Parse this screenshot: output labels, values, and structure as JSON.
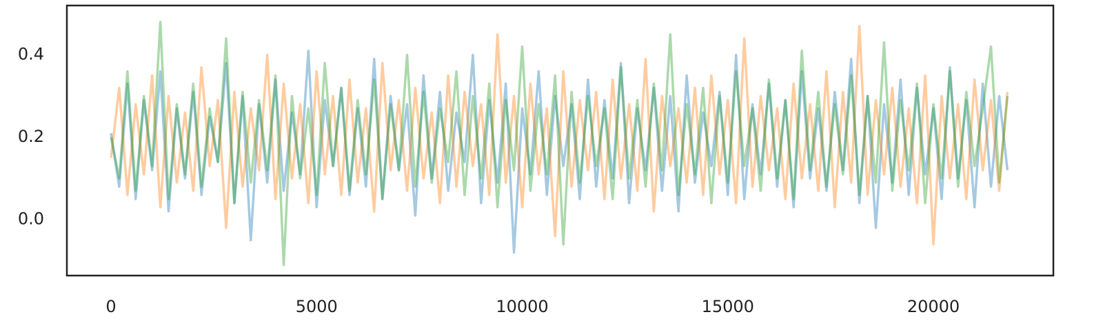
{
  "chart_data": {
    "type": "line",
    "x": [
      0,
      200,
      400,
      600,
      800,
      1000,
      1200,
      1400,
      1600,
      1800,
      2000,
      2200,
      2400,
      2600,
      2800,
      3000,
      3200,
      3400,
      3600,
      3800,
      4000,
      4200,
      4400,
      4600,
      4800,
      5000,
      5200,
      5400,
      5600,
      5800,
      6000,
      6200,
      6400,
      6600,
      6800,
      7000,
      7200,
      7400,
      7600,
      7800,
      8000,
      8200,
      8400,
      8600,
      8800,
      9000,
      9200,
      9400,
      9600,
      9800,
      10000,
      10200,
      10400,
      10600,
      10800,
      11000,
      11200,
      11400,
      11600,
      11800,
      12000,
      12200,
      12400,
      12600,
      12800,
      13000,
      13200,
      13400,
      13600,
      13800,
      14000,
      14200,
      14400,
      14600,
      14800,
      15000,
      15200,
      15400,
      15600,
      15800,
      16000,
      16200,
      16400,
      16600,
      16800,
      17000,
      17200,
      17400,
      17600,
      17800,
      18000,
      18200,
      18400,
      18600,
      18800,
      19000,
      19200,
      19400,
      19600,
      19800,
      20000,
      20200,
      20400,
      20600,
      20800,
      21000,
      21200,
      21400,
      21600,
      21800
    ],
    "series": [
      {
        "color": "#1f77b4",
        "values": [
          0.21,
          0.08,
          0.33,
          0.05,
          0.29,
          0.12,
          0.36,
          0.02,
          0.27,
          0.1,
          0.31,
          0.06,
          0.25,
          0.14,
          0.38,
          0.04,
          0.3,
          -0.05,
          0.28,
          0.09,
          0.34,
          0.07,
          0.26,
          0.11,
          0.41,
          0.03,
          0.29,
          0.13,
          0.32,
          0.06,
          0.27,
          0.08,
          0.39,
          0.05,
          0.3,
          0.12,
          0.28,
          0.01,
          0.35,
          0.1,
          0.31,
          0.07,
          0.26,
          0.14,
          0.4,
          0.04,
          0.29,
          0.09,
          0.33,
          -0.08,
          0.27,
          0.11,
          0.36,
          0.06,
          0.3,
          0.13,
          0.28,
          0.05,
          0.34,
          0.08,
          0.29,
          0.1,
          0.38,
          0.04,
          0.27,
          0.12,
          0.32,
          0.07,
          0.3,
          0.02,
          0.35,
          0.09,
          0.26,
          0.13,
          0.31,
          0.06,
          0.4,
          0.05,
          0.28,
          0.11,
          0.33,
          0.08,
          0.29,
          0.03,
          0.36,
          0.1,
          0.27,
          0.07,
          0.31,
          0.12,
          0.39,
          0.04,
          0.3,
          -0.02,
          0.28,
          0.09,
          0.34,
          0.06,
          0.32,
          0.11,
          0.27,
          0.05,
          0.37,
          0.1,
          0.29,
          0.03,
          0.33,
          0.08,
          0.3,
          0.12
        ]
      },
      {
        "color": "#ff7f0e",
        "values": [
          0.15,
          0.32,
          0.06,
          0.28,
          0.11,
          0.35,
          0.03,
          0.3,
          0.09,
          0.26,
          0.07,
          0.37,
          0.13,
          0.29,
          -0.02,
          0.31,
          0.08,
          0.27,
          0.12,
          0.4,
          0.05,
          0.33,
          0.1,
          0.28,
          0.04,
          0.36,
          0.11,
          0.3,
          0.06,
          0.34,
          0.09,
          0.27,
          0.02,
          0.38,
          0.12,
          0.29,
          0.07,
          0.32,
          0.1,
          0.26,
          0.04,
          0.35,
          0.08,
          0.31,
          0.13,
          0.28,
          0.06,
          0.45,
          0.09,
          0.3,
          0.03,
          0.33,
          0.11,
          0.27,
          -0.04,
          0.36,
          0.08,
          0.29,
          0.12,
          0.31,
          0.05,
          0.34,
          0.1,
          0.28,
          0.07,
          0.39,
          0.02,
          0.3,
          0.13,
          0.27,
          0.09,
          0.32,
          0.06,
          0.35,
          0.11,
          0.29,
          0.04,
          0.44,
          0.08,
          0.3,
          0.12,
          0.27,
          0.05,
          0.33,
          0.1,
          0.28,
          0.07,
          0.36,
          0.03,
          0.31,
          0.09,
          0.47,
          0.06,
          0.29,
          0.11,
          0.32,
          0.08,
          0.27,
          0.04,
          0.35,
          -0.06,
          0.3,
          0.1,
          0.28,
          0.05,
          0.34,
          0.12,
          0.29,
          0.07,
          0.31
        ]
      },
      {
        "color": "#2ca02c",
        "values": [
          0.2,
          0.1,
          0.36,
          0.07,
          0.3,
          0.13,
          0.48,
          0.05,
          0.28,
          0.11,
          0.33,
          0.08,
          0.27,
          0.14,
          0.44,
          0.04,
          0.31,
          0.09,
          0.29,
          0.12,
          0.35,
          -0.11,
          0.3,
          0.1,
          0.27,
          0.06,
          0.38,
          0.13,
          0.32,
          0.07,
          0.29,
          0.11,
          0.34,
          0.05,
          0.28,
          0.12,
          0.4,
          0.08,
          0.31,
          0.09,
          0.27,
          0.14,
          0.36,
          0.06,
          0.3,
          0.1,
          0.33,
          0.03,
          0.29,
          0.12,
          0.42,
          0.07,
          0.28,
          0.11,
          0.35,
          -0.06,
          0.31,
          0.09,
          0.3,
          0.13,
          0.27,
          0.05,
          0.37,
          0.1,
          0.29,
          0.08,
          0.33,
          0.12,
          0.45,
          0.06,
          0.28,
          0.11,
          0.32,
          0.04,
          0.3,
          0.09,
          0.36,
          0.13,
          0.27,
          0.07,
          0.34,
          0.1,
          0.29,
          0.05,
          0.41,
          0.12,
          0.31,
          0.08,
          0.28,
          0.11,
          0.35,
          0.06,
          0.3,
          0.09,
          0.43,
          0.07,
          0.29,
          0.12,
          0.33,
          0.04,
          0.28,
          0.1,
          0.36,
          0.08,
          0.31,
          0.13,
          0.27,
          0.42,
          0.09,
          0.3
        ]
      }
    ],
    "xlim": [
      -1073,
      22917
    ],
    "xticks": [
      0,
      5000,
      10000,
      15000,
      20000
    ],
    "ylim": [
      -0.136,
      0.52
    ],
    "yticks": [
      {
        "value": 0,
        "label": "0.0"
      },
      {
        "value": 0.2,
        "label": "0.2"
      },
      {
        "value": 0.4,
        "label": "0.4"
      }
    ],
    "line_opacity": 0.4,
    "grid": false
  }
}
